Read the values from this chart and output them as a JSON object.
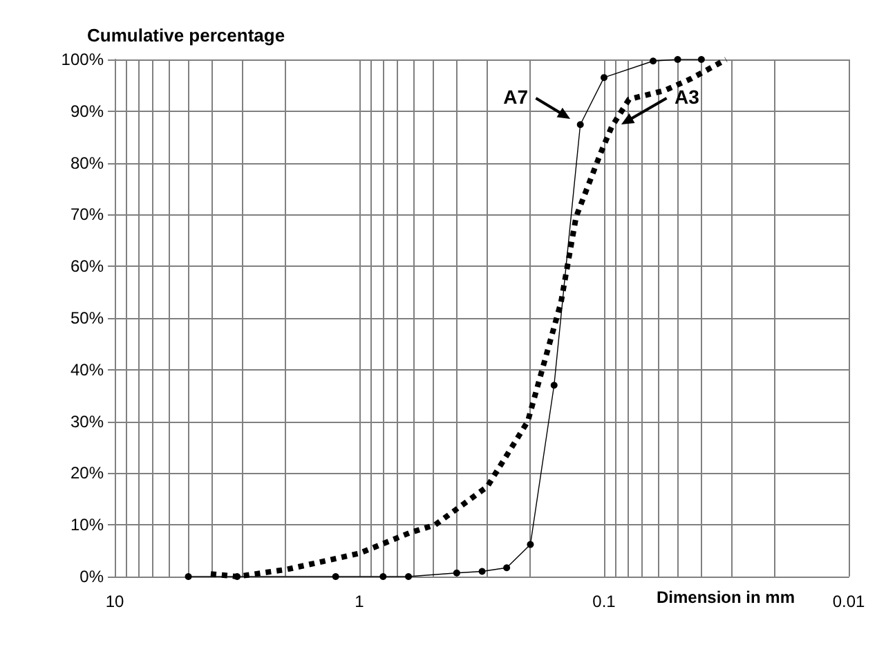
{
  "chart_data": {
    "type": "line",
    "ylabel": "Cumulative percentage",
    "xlabel": "Dimension in mm",
    "log": "x",
    "series": [
      {
        "color": "#000000",
        "marker": "circle",
        "line_style": "solid",
        "x": [
          5.0,
          3.16,
          1.25,
          0.8,
          0.63,
          0.4,
          0.315,
          0.25,
          0.2,
          0.16,
          0.125,
          0.1,
          0.063,
          0.05,
          0.04
        ],
        "values": [
          0,
          0,
          0,
          0,
          0,
          0.7,
          1,
          1.7,
          6.2,
          37,
          87.4,
          96.5,
          99.7,
          100,
          100
        ]
      },
      {
        "color": "#000000",
        "marker": "none",
        "line_style": "dotted",
        "x": [
          4.05,
          3.16,
          1.97,
          1,
          0.62,
          0.49,
          0.3,
          0.205,
          0.15,
          0.13,
          0.103,
          0.093,
          0.079,
          0.0565,
          0.044,
          0.0317
        ],
        "values": [
          0.5,
          0,
          1.4,
          4.5,
          8.5,
          10,
          17.4,
          30,
          53,
          69.6,
          82,
          87,
          92.3,
          94,
          96.3,
          100
        ]
      }
    ],
    "annotations": [
      "A7",
      "A3"
    ],
    "xlim": [
      10,
      0.01
    ],
    "xticks": [
      10,
      {
        "value": 9,
        "label": null
      },
      {
        "value": 8,
        "label": null
      },
      {
        "value": 7,
        "label": null
      },
      {
        "value": 6,
        "label": null
      },
      {
        "value": 5,
        "label": null
      },
      {
        "value": 4,
        "label": null
      },
      {
        "value": 3,
        "label": null
      },
      {
        "value": 2,
        "label": null
      },
      1,
      {
        "value": 0.9,
        "label": null
      },
      {
        "value": 0.8,
        "label": null
      },
      {
        "value": 0.7,
        "label": null
      },
      {
        "value": 0.6,
        "label": null
      },
      {
        "value": 0.5,
        "label": null
      },
      {
        "value": 0.4,
        "label": null
      },
      {
        "value": 0.3,
        "label": null
      },
      {
        "value": 0.2,
        "label": null
      },
      0.1,
      {
        "value": 0.09,
        "label": null
      },
      {
        "value": 0.08,
        "label": null
      },
      {
        "value": 0.07,
        "label": null
      },
      {
        "value": 0.06,
        "label": null
      },
      {
        "value": 0.05,
        "label": null
      },
      {
        "value": 0.04,
        "label": null
      },
      {
        "value": 0.03,
        "label": null
      },
      {
        "value": 0.02,
        "label": null
      },
      0.01
    ],
    "ylim": [
      0,
      100
    ],
    "yticks": [
      {
        "value": 0,
        "label": "0%"
      },
      {
        "value": 10,
        "label": "10%"
      },
      {
        "value": 20,
        "label": "20%"
      },
      {
        "value": 30,
        "label": "30%"
      },
      {
        "value": 40,
        "label": "40%"
      },
      {
        "value": 50,
        "label": "50%"
      },
      {
        "value": 60,
        "label": "60%"
      },
      {
        "value": 70,
        "label": "70%"
      },
      {
        "value": 80,
        "label": "80%"
      },
      {
        "value": 90,
        "label": "90%"
      },
      {
        "value": 100,
        "label": "100%"
      }
    ],
    "grid": true
  }
}
